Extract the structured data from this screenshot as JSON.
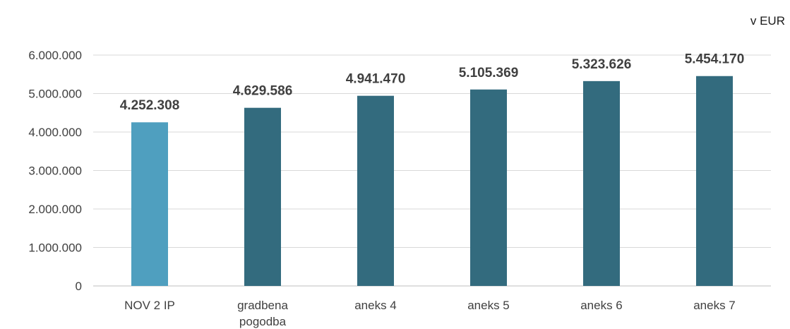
{
  "unit_label": "v EUR",
  "chart_data": {
    "type": "bar",
    "title": "",
    "xlabel": "",
    "ylabel": "",
    "unit": "v EUR",
    "categories": [
      "NOV 2 IP",
      "gradbena pogodba",
      "aneks 4",
      "aneks 5",
      "aneks 6",
      "aneks 7"
    ],
    "values": [
      4252308,
      4629586,
      4941470,
      5105369,
      5323626,
      5454170
    ],
    "value_labels": [
      "4.252.308",
      "4.629.586",
      "4.941.470",
      "5.105.369",
      "5.323.626",
      "5.454.170"
    ],
    "bar_colors": [
      "#4f9fbf",
      "#336b7e",
      "#336b7e",
      "#336b7e",
      "#336b7e",
      "#336b7e"
    ],
    "ylim": [
      0,
      6000000
    ],
    "yticks": [
      0,
      1000000,
      2000000,
      3000000,
      4000000,
      5000000,
      6000000
    ],
    "ytick_labels": [
      "0",
      "1.000.000",
      "2.000.000",
      "3.000.000",
      "4.000.000",
      "5.000.000",
      "6.000.000"
    ],
    "grid": true,
    "grid_color": "#d9d9d9",
    "legend": "none"
  }
}
